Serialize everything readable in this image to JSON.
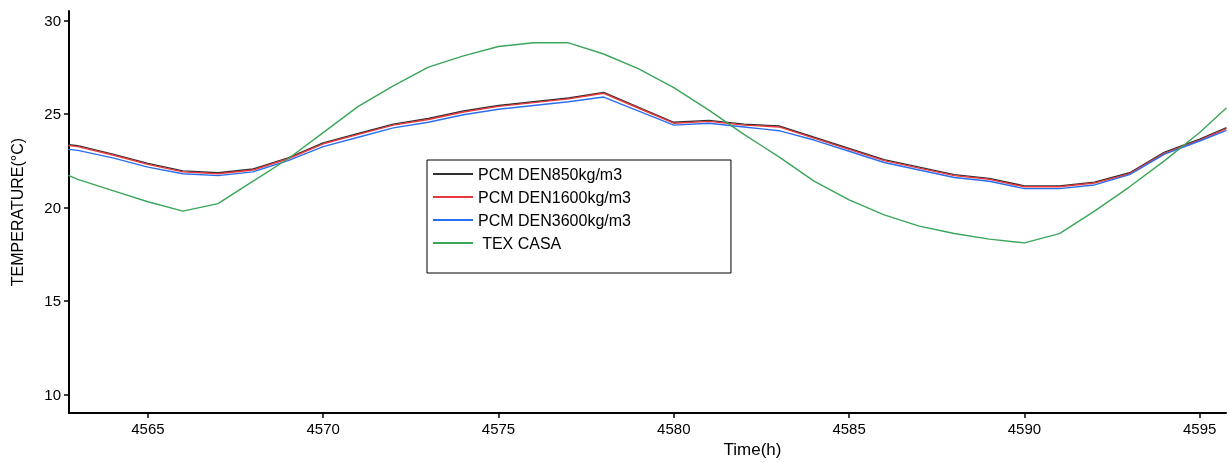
{
  "chart_data": {
    "type": "line",
    "xlabel": "Time(h)",
    "ylabel": "TEMPERATURE(°C)",
    "x": [
      4562.75,
      4563,
      4564,
      4565,
      4566,
      4567,
      4568,
      4569,
      4570,
      4571,
      4572,
      4573,
      4574,
      4575,
      4576,
      4577,
      4578,
      4579,
      4580,
      4581,
      4582,
      4583,
      4584,
      4585,
      4586,
      4587,
      4588,
      4589,
      4590,
      4591,
      4592,
      4593,
      4594,
      4595,
      4595.75
    ],
    "series": [
      {
        "name": "PCM DEN850kg/m3",
        "color": "#303030",
        "values": [
          23.35,
          23.3,
          22.85,
          22.35,
          21.95,
          21.85,
          22.05,
          22.65,
          23.45,
          23.95,
          24.45,
          24.75,
          25.15,
          25.45,
          25.65,
          25.85,
          26.15,
          25.35,
          24.55,
          24.65,
          24.45,
          24.35,
          23.75,
          23.15,
          22.55,
          22.15,
          21.75,
          21.55,
          21.15,
          21.15,
          21.35,
          21.85,
          22.95,
          23.65,
          24.25
        ]
      },
      {
        "name": "PCM DEN1600kg/m3",
        "color": "#e8383d",
        "values": [
          23.3,
          23.25,
          22.8,
          22.3,
          21.9,
          21.8,
          22.0,
          22.6,
          23.4,
          23.9,
          24.4,
          24.7,
          25.1,
          25.4,
          25.6,
          25.8,
          26.1,
          25.3,
          24.5,
          24.6,
          24.4,
          24.3,
          23.7,
          23.1,
          22.5,
          22.1,
          21.7,
          21.5,
          21.1,
          21.1,
          21.3,
          21.8,
          22.9,
          23.6,
          24.2
        ]
      },
      {
        "name": "PCM DEN3600kg/m3",
        "color": "#2a6ff0",
        "values": [
          23.1,
          23.05,
          22.65,
          22.15,
          21.8,
          21.7,
          21.9,
          22.5,
          23.25,
          23.75,
          24.25,
          24.55,
          24.95,
          25.25,
          25.45,
          25.65,
          25.9,
          25.15,
          24.4,
          24.5,
          24.3,
          24.1,
          23.6,
          23.0,
          22.4,
          22.0,
          21.6,
          21.4,
          21.0,
          21.0,
          21.2,
          21.75,
          22.85,
          23.55,
          24.1
        ]
      },
      {
        "name": " TEX CASA",
        "color": "#3aa65a",
        "values": [
          21.7,
          21.5,
          20.9,
          20.3,
          19.8,
          20.2,
          21.4,
          22.6,
          24.0,
          25.4,
          26.5,
          27.5,
          28.1,
          28.6,
          28.8,
          28.8,
          28.2,
          27.4,
          26.4,
          25.2,
          23.9,
          22.7,
          21.4,
          20.4,
          19.6,
          19.0,
          18.6,
          18.3,
          18.1,
          18.6,
          19.8,
          21.1,
          22.5,
          24.0,
          25.3
        ]
      }
    ],
    "xlim": [
      4562.75,
      4595.75
    ],
    "xticks": [
      4565,
      4570,
      4575,
      4580,
      4585,
      4590,
      4595
    ],
    "ylim": [
      9,
      30.5
    ],
    "yticks": [
      10,
      15,
      20,
      25,
      30
    ],
    "legend": "center",
    "grid": false,
    "marker": "none",
    "line_style": "solid"
  }
}
